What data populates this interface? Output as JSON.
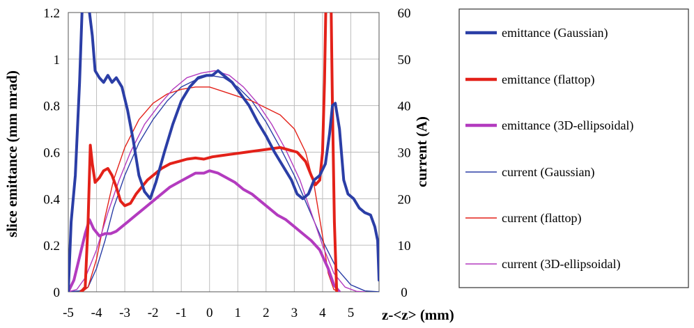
{
  "chart_data": {
    "type": "line",
    "xlabel": "z-<z> (mm)",
    "ylabel_left": "slice emittance (mm mrad)",
    "ylabel_right": "current (A)",
    "xlim": [
      -5,
      6
    ],
    "ylim_left": [
      0,
      1.2
    ],
    "ylim_right": [
      0,
      60
    ],
    "x_ticks": [
      "-5",
      "-4",
      "-3",
      "-2",
      "-1",
      "0",
      "1",
      "2",
      "3",
      "4",
      "5"
    ],
    "y_ticks_left": [
      "0",
      "0.2",
      "0.4",
      "0.6",
      "0.8",
      "1",
      "1.2"
    ],
    "y_ticks_right": [
      "0",
      "10",
      "20",
      "30",
      "40",
      "50",
      "60"
    ],
    "grid": true,
    "legend_position": "right-outside",
    "series": [
      {
        "name": "emittance (Gaussian)",
        "axis": "left",
        "color": "#2b3ea6",
        "style": "thick",
        "points": [
          [
            -5.0,
            0.0
          ],
          [
            -4.9,
            0.3
          ],
          [
            -4.75,
            0.5
          ],
          [
            -4.6,
            0.9
          ],
          [
            -4.5,
            1.25
          ],
          [
            -4.3,
            1.25
          ],
          [
            -4.15,
            1.1
          ],
          [
            -4.05,
            0.95
          ],
          [
            -3.9,
            0.92
          ],
          [
            -3.75,
            0.9
          ],
          [
            -3.6,
            0.93
          ],
          [
            -3.45,
            0.9
          ],
          [
            -3.3,
            0.92
          ],
          [
            -3.1,
            0.88
          ],
          [
            -2.9,
            0.78
          ],
          [
            -2.7,
            0.65
          ],
          [
            -2.5,
            0.5
          ],
          [
            -2.3,
            0.43
          ],
          [
            -2.1,
            0.4
          ],
          [
            -1.9,
            0.47
          ],
          [
            -1.6,
            0.6
          ],
          [
            -1.3,
            0.72
          ],
          [
            -1.0,
            0.82
          ],
          [
            -0.7,
            0.88
          ],
          [
            -0.4,
            0.92
          ],
          [
            -0.1,
            0.93
          ],
          [
            0.1,
            0.93
          ],
          [
            0.3,
            0.95
          ],
          [
            0.5,
            0.93
          ],
          [
            0.8,
            0.9
          ],
          [
            1.1,
            0.85
          ],
          [
            1.4,
            0.8
          ],
          [
            1.7,
            0.73
          ],
          [
            2.0,
            0.67
          ],
          [
            2.3,
            0.6
          ],
          [
            2.6,
            0.54
          ],
          [
            2.9,
            0.48
          ],
          [
            3.1,
            0.42
          ],
          [
            3.3,
            0.4
          ],
          [
            3.5,
            0.42
          ],
          [
            3.7,
            0.48
          ],
          [
            3.9,
            0.5
          ],
          [
            4.1,
            0.55
          ],
          [
            4.25,
            0.68
          ],
          [
            4.35,
            0.8
          ],
          [
            4.45,
            0.81
          ],
          [
            4.6,
            0.7
          ],
          [
            4.75,
            0.48
          ],
          [
            4.9,
            0.42
          ],
          [
            5.1,
            0.4
          ],
          [
            5.3,
            0.36
          ],
          [
            5.5,
            0.34
          ],
          [
            5.7,
            0.33
          ],
          [
            5.85,
            0.28
          ],
          [
            5.95,
            0.22
          ],
          [
            6.0,
            0.05
          ]
        ]
      },
      {
        "name": "emittance (flattop)",
        "axis": "left",
        "color": "#e32119",
        "style": "thick",
        "points": [
          [
            -4.55,
            0.0
          ],
          [
            -4.4,
            0.02
          ],
          [
            -4.3,
            0.3
          ],
          [
            -4.22,
            0.63
          ],
          [
            -4.15,
            0.55
          ],
          [
            -4.05,
            0.47
          ],
          [
            -3.9,
            0.49
          ],
          [
            -3.75,
            0.52
          ],
          [
            -3.6,
            0.53
          ],
          [
            -3.45,
            0.5
          ],
          [
            -3.3,
            0.45
          ],
          [
            -3.15,
            0.39
          ],
          [
            -3.0,
            0.37
          ],
          [
            -2.8,
            0.38
          ],
          [
            -2.6,
            0.42
          ],
          [
            -2.4,
            0.45
          ],
          [
            -2.2,
            0.48
          ],
          [
            -2.0,
            0.5
          ],
          [
            -1.7,
            0.53
          ],
          [
            -1.4,
            0.55
          ],
          [
            -1.1,
            0.56
          ],
          [
            -0.8,
            0.57
          ],
          [
            -0.5,
            0.575
          ],
          [
            -0.2,
            0.57
          ],
          [
            0.1,
            0.58
          ],
          [
            0.4,
            0.585
          ],
          [
            0.7,
            0.59
          ],
          [
            1.0,
            0.595
          ],
          [
            1.3,
            0.6
          ],
          [
            1.6,
            0.605
          ],
          [
            1.9,
            0.61
          ],
          [
            2.2,
            0.615
          ],
          [
            2.5,
            0.62
          ],
          [
            2.8,
            0.61
          ],
          [
            3.1,
            0.6
          ],
          [
            3.4,
            0.56
          ],
          [
            3.6,
            0.5
          ],
          [
            3.75,
            0.46
          ],
          [
            3.9,
            0.48
          ],
          [
            4.0,
            0.6
          ],
          [
            4.07,
            0.9
          ],
          [
            4.12,
            1.25
          ],
          [
            4.3,
            1.25
          ],
          [
            4.35,
            0.8
          ],
          [
            4.42,
            0.3
          ],
          [
            4.5,
            0.0
          ]
        ]
      },
      {
        "name": "emittance (3D-ellipsoidal)",
        "axis": "left",
        "color": "#b33bbf",
        "style": "thick",
        "points": [
          [
            -5.0,
            0.0
          ],
          [
            -4.8,
            0.05
          ],
          [
            -4.6,
            0.15
          ],
          [
            -4.4,
            0.25
          ],
          [
            -4.25,
            0.31
          ],
          [
            -4.1,
            0.27
          ],
          [
            -3.9,
            0.24
          ],
          [
            -3.7,
            0.25
          ],
          [
            -3.5,
            0.25
          ],
          [
            -3.3,
            0.26
          ],
          [
            -3.1,
            0.28
          ],
          [
            -2.9,
            0.3
          ],
          [
            -2.6,
            0.33
          ],
          [
            -2.3,
            0.36
          ],
          [
            -2.0,
            0.39
          ],
          [
            -1.7,
            0.42
          ],
          [
            -1.4,
            0.45
          ],
          [
            -1.1,
            0.47
          ],
          [
            -0.8,
            0.49
          ],
          [
            -0.5,
            0.51
          ],
          [
            -0.2,
            0.51
          ],
          [
            0.0,
            0.52
          ],
          [
            0.3,
            0.51
          ],
          [
            0.6,
            0.49
          ],
          [
            0.9,
            0.47
          ],
          [
            1.2,
            0.44
          ],
          [
            1.5,
            0.42
          ],
          [
            1.8,
            0.39
          ],
          [
            2.1,
            0.36
          ],
          [
            2.4,
            0.33
          ],
          [
            2.7,
            0.31
          ],
          [
            3.0,
            0.28
          ],
          [
            3.3,
            0.25
          ],
          [
            3.6,
            0.22
          ],
          [
            3.9,
            0.18
          ],
          [
            4.2,
            0.1
          ],
          [
            4.4,
            0.03
          ],
          [
            4.6,
            0.0
          ]
        ]
      },
      {
        "name": "current (Gaussian)",
        "axis": "right",
        "color": "#2b3ea6",
        "style": "thin",
        "points": [
          [
            -5.0,
            0.0
          ],
          [
            -4.6,
            0.2
          ],
          [
            -4.3,
            1.0
          ],
          [
            -4.0,
            5.0
          ],
          [
            -3.7,
            11.0
          ],
          [
            -3.4,
            18.0
          ],
          [
            -3.0,
            25.0
          ],
          [
            -2.5,
            32.0
          ],
          [
            -2.0,
            37.0
          ],
          [
            -1.5,
            41.0
          ],
          [
            -1.0,
            44.0
          ],
          [
            -0.5,
            45.5
          ],
          [
            0.0,
            46.5
          ],
          [
            0.5,
            46.0
          ],
          [
            1.0,
            44.0
          ],
          [
            1.5,
            41.0
          ],
          [
            2.0,
            36.5
          ],
          [
            2.5,
            31.0
          ],
          [
            3.0,
            25.0
          ],
          [
            3.5,
            18.0
          ],
          [
            4.0,
            11.0
          ],
          [
            4.5,
            5.0
          ],
          [
            5.0,
            1.5
          ],
          [
            5.5,
            0.2
          ],
          [
            6.0,
            0.0
          ]
        ]
      },
      {
        "name": "current (flattop)",
        "axis": "right",
        "color": "#e32119",
        "style": "thin",
        "points": [
          [
            -4.5,
            0.0
          ],
          [
            -4.3,
            1.0
          ],
          [
            -4.0,
            7.0
          ],
          [
            -3.7,
            16.0
          ],
          [
            -3.4,
            24.0
          ],
          [
            -3.0,
            31.0
          ],
          [
            -2.5,
            37.0
          ],
          [
            -2.0,
            40.5
          ],
          [
            -1.5,
            42.5
          ],
          [
            -1.0,
            43.5
          ],
          [
            -0.5,
            44.0
          ],
          [
            0.0,
            44.0
          ],
          [
            0.5,
            43.0
          ],
          [
            1.0,
            42.0
          ],
          [
            1.5,
            41.0
          ],
          [
            2.0,
            39.5
          ],
          [
            2.5,
            38.0
          ],
          [
            3.0,
            35.0
          ],
          [
            3.4,
            30.0
          ],
          [
            3.7,
            23.0
          ],
          [
            4.0,
            12.0
          ],
          [
            4.2,
            4.0
          ],
          [
            4.4,
            0.5
          ],
          [
            4.6,
            0.0
          ]
        ]
      },
      {
        "name": "current (3D-ellipsoidal)",
        "axis": "right",
        "color": "#b33bbf",
        "style": "thin",
        "points": [
          [
            -5.0,
            0.0
          ],
          [
            -4.7,
            0.5
          ],
          [
            -4.4,
            3.0
          ],
          [
            -4.0,
            9.0
          ],
          [
            -3.6,
            17.0
          ],
          [
            -3.2,
            24.0
          ],
          [
            -2.8,
            30.0
          ],
          [
            -2.3,
            36.0
          ],
          [
            -1.8,
            40.0
          ],
          [
            -1.3,
            43.5
          ],
          [
            -0.8,
            46.0
          ],
          [
            -0.3,
            47.0
          ],
          [
            0.2,
            47.5
          ],
          [
            0.7,
            46.5
          ],
          [
            1.2,
            44.0
          ],
          [
            1.7,
            40.5
          ],
          [
            2.2,
            36.0
          ],
          [
            2.7,
            30.5
          ],
          [
            3.2,
            24.0
          ],
          [
            3.6,
            17.0
          ],
          [
            4.0,
            10.0
          ],
          [
            4.4,
            4.0
          ],
          [
            4.8,
            1.0
          ],
          [
            5.2,
            0.1
          ],
          [
            5.5,
            0.0
          ]
        ]
      }
    ]
  }
}
